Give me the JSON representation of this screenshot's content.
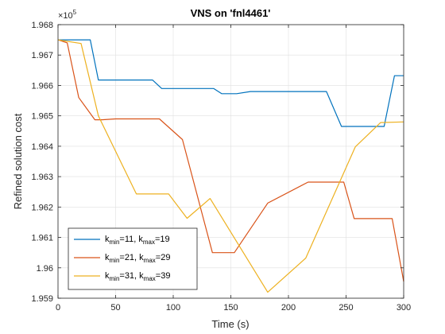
{
  "chart_data": {
    "type": "line",
    "title": "VNS on 'fnl4461'",
    "xlabel": "Time (s)",
    "ylabel": "Refined solution cost",
    "xlim": [
      0,
      300
    ],
    "ylim": [
      195900,
      196800
    ],
    "xticks": [
      0,
      50,
      100,
      150,
      200,
      250,
      300
    ],
    "xtick_labels": [
      "0",
      "50",
      "100",
      "150",
      "200",
      "250",
      "300"
    ],
    "yticks": [
      195900,
      196000,
      196100,
      196200,
      196300,
      196400,
      196500,
      196600,
      196700,
      196800
    ],
    "ytick_labels": [
      "1.959",
      "1.96",
      "1.961",
      "1.962",
      "1.963",
      "1.964",
      "1.965",
      "1.966",
      "1.967",
      "1.968"
    ],
    "y_exponent": {
      "base": "×10",
      "power": "5"
    },
    "grid": true,
    "legend_position": "bottom-left",
    "series": [
      {
        "name": "k_min=11, k_max=19",
        "legend": [
          {
            "text": "k",
            "sub": false
          },
          {
            "text": "min",
            "sub": true
          },
          {
            "text": "=11, k",
            "sub": false
          },
          {
            "text": "max",
            "sub": true
          },
          {
            "text": "=19",
            "sub": false
          }
        ],
        "color": "#0072BD",
        "points": [
          [
            0,
            196750
          ],
          [
            28,
            196750
          ],
          [
            35,
            196618
          ],
          [
            82,
            196618
          ],
          [
            90,
            196590
          ],
          [
            135,
            196590
          ],
          [
            142,
            196573
          ],
          [
            155,
            196573
          ],
          [
            167,
            196580
          ],
          [
            233,
            196580
          ],
          [
            246,
            196465
          ],
          [
            283,
            196465
          ],
          [
            292,
            196632
          ],
          [
            300,
            196632
          ]
        ]
      },
      {
        "name": "k_min=21, k_max=29",
        "legend": [
          {
            "text": "k",
            "sub": false
          },
          {
            "text": "min",
            "sub": true
          },
          {
            "text": "=21, k",
            "sub": false
          },
          {
            "text": "max",
            "sub": true
          },
          {
            "text": "=29",
            "sub": false
          }
        ],
        "color": "#D95319",
        "points": [
          [
            0,
            196750
          ],
          [
            8,
            196740
          ],
          [
            18,
            196560
          ],
          [
            32,
            196487
          ],
          [
            38,
            196487
          ],
          [
            50,
            196490
          ],
          [
            88,
            196490
          ],
          [
            108,
            196422
          ],
          [
            134,
            196050
          ],
          [
            153,
            196050
          ],
          [
            182,
            196213
          ],
          [
            217,
            196282
          ],
          [
            248,
            196282
          ],
          [
            257,
            196162
          ],
          [
            290,
            196162
          ],
          [
            300,
            195955
          ]
        ]
      },
      {
        "name": "k_min=31, k_max=39",
        "legend": [
          {
            "text": "k",
            "sub": false
          },
          {
            "text": "min",
            "sub": true
          },
          {
            "text": "=31, k",
            "sub": false
          },
          {
            "text": "max",
            "sub": true
          },
          {
            "text": "=39",
            "sub": false
          }
        ],
        "color": "#EDB120",
        "points": [
          [
            0,
            196750
          ],
          [
            20,
            196738
          ],
          [
            35,
            196500
          ],
          [
            68,
            196243
          ],
          [
            96,
            196243
          ],
          [
            112,
            196163
          ],
          [
            132,
            196228
          ],
          [
            182,
            195920
          ],
          [
            215,
            196032
          ],
          [
            258,
            196398
          ],
          [
            280,
            196478
          ],
          [
            300,
            196480
          ]
        ]
      }
    ]
  }
}
